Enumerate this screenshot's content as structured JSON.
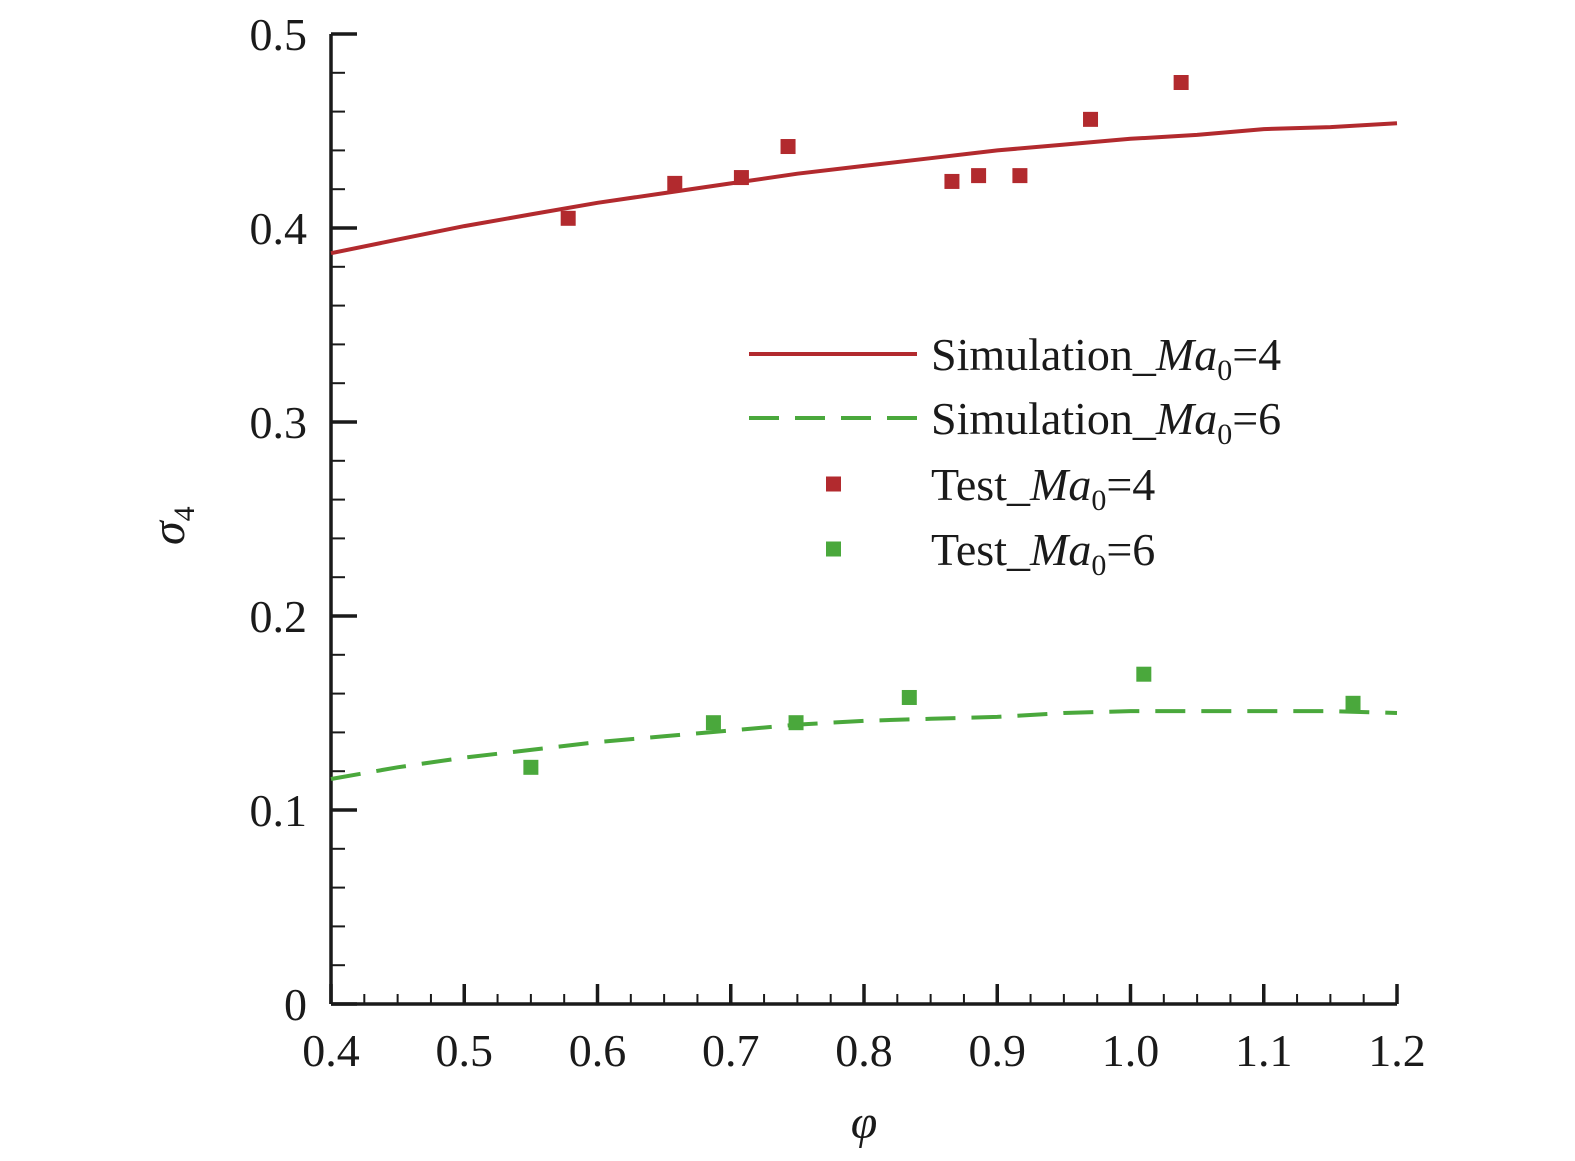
{
  "chart_data": {
    "type": "line",
    "title": "",
    "xlabel": "φ",
    "ylabel_symbol": "σ",
    "ylabel_subscript": "4",
    "xlim": [
      0.4,
      1.2
    ],
    "ylim": [
      0,
      0.5
    ],
    "x_ticks": [
      0.4,
      0.5,
      0.6,
      0.7,
      0.8,
      0.9,
      1.0,
      1.1,
      1.2
    ],
    "x_tick_labels": [
      "0.4",
      "0.5",
      "0.6",
      "0.7",
      "0.8",
      "0.9",
      "1.0",
      "1.1",
      "1.2"
    ],
    "y_ticks": [
      0,
      0.1,
      0.2,
      0.3,
      0.4,
      0.5
    ],
    "y_tick_labels": [
      "0",
      "0.1",
      "0.2",
      "0.3",
      "0.4",
      "0.5"
    ],
    "x_minor_step": 0.025,
    "y_minor_step": 0.02,
    "grid": false,
    "legend_position": "right-middle",
    "series": [
      {
        "name": "Simulation_Ma0=4",
        "legend_prefix": "Simulation_",
        "legend_italic": "Ma",
        "legend_sub": "0",
        "legend_suffix": "=4",
        "kind": "line",
        "dash": "solid",
        "color": "#b22a2e",
        "x": [
          0.4,
          0.45,
          0.5,
          0.55,
          0.6,
          0.65,
          0.7,
          0.75,
          0.8,
          0.85,
          0.9,
          0.95,
          1.0,
          1.05,
          1.1,
          1.15,
          1.2
        ],
        "y": [
          0.387,
          0.394,
          0.401,
          0.407,
          0.413,
          0.418,
          0.423,
          0.428,
          0.432,
          0.436,
          0.44,
          0.443,
          0.446,
          0.448,
          0.451,
          0.452,
          0.454
        ]
      },
      {
        "name": "Simulation_Ma0=6",
        "legend_prefix": "Simulation_",
        "legend_italic": "Ma",
        "legend_sub": "0",
        "legend_suffix": "=6",
        "kind": "line",
        "dash": "dashed",
        "color": "#4aa83c",
        "x": [
          0.4,
          0.45,
          0.5,
          0.55,
          0.6,
          0.65,
          0.7,
          0.75,
          0.8,
          0.85,
          0.9,
          0.95,
          1.0,
          1.05,
          1.1,
          1.15,
          1.2
        ],
        "y": [
          0.116,
          0.122,
          0.127,
          0.131,
          0.135,
          0.138,
          0.141,
          0.144,
          0.146,
          0.147,
          0.148,
          0.15,
          0.151,
          0.151,
          0.151,
          0.151,
          0.15
        ]
      },
      {
        "name": "Test_Ma0=4",
        "legend_prefix": "Test_",
        "legend_italic": "Ma",
        "legend_sub": "0",
        "legend_suffix": "=4",
        "kind": "scatter",
        "marker": "square",
        "color": "#b22a2e",
        "x": [
          0.578,
          0.658,
          0.708,
          0.743,
          0.866,
          0.886,
          0.917,
          0.97,
          1.038
        ],
        "y": [
          0.405,
          0.423,
          0.426,
          0.442,
          0.424,
          0.427,
          0.427,
          0.456,
          0.475
        ]
      },
      {
        "name": "Test_Ma0=6",
        "legend_prefix": "Test_",
        "legend_italic": "Ma",
        "legend_sub": "0",
        "legend_suffix": "=6",
        "kind": "scatter",
        "marker": "square",
        "color": "#4aa83c",
        "x": [
          0.55,
          0.687,
          0.749,
          0.834,
          1.01,
          1.167
        ],
        "y": [
          0.122,
          0.145,
          0.145,
          0.158,
          0.17,
          0.155
        ]
      }
    ]
  }
}
